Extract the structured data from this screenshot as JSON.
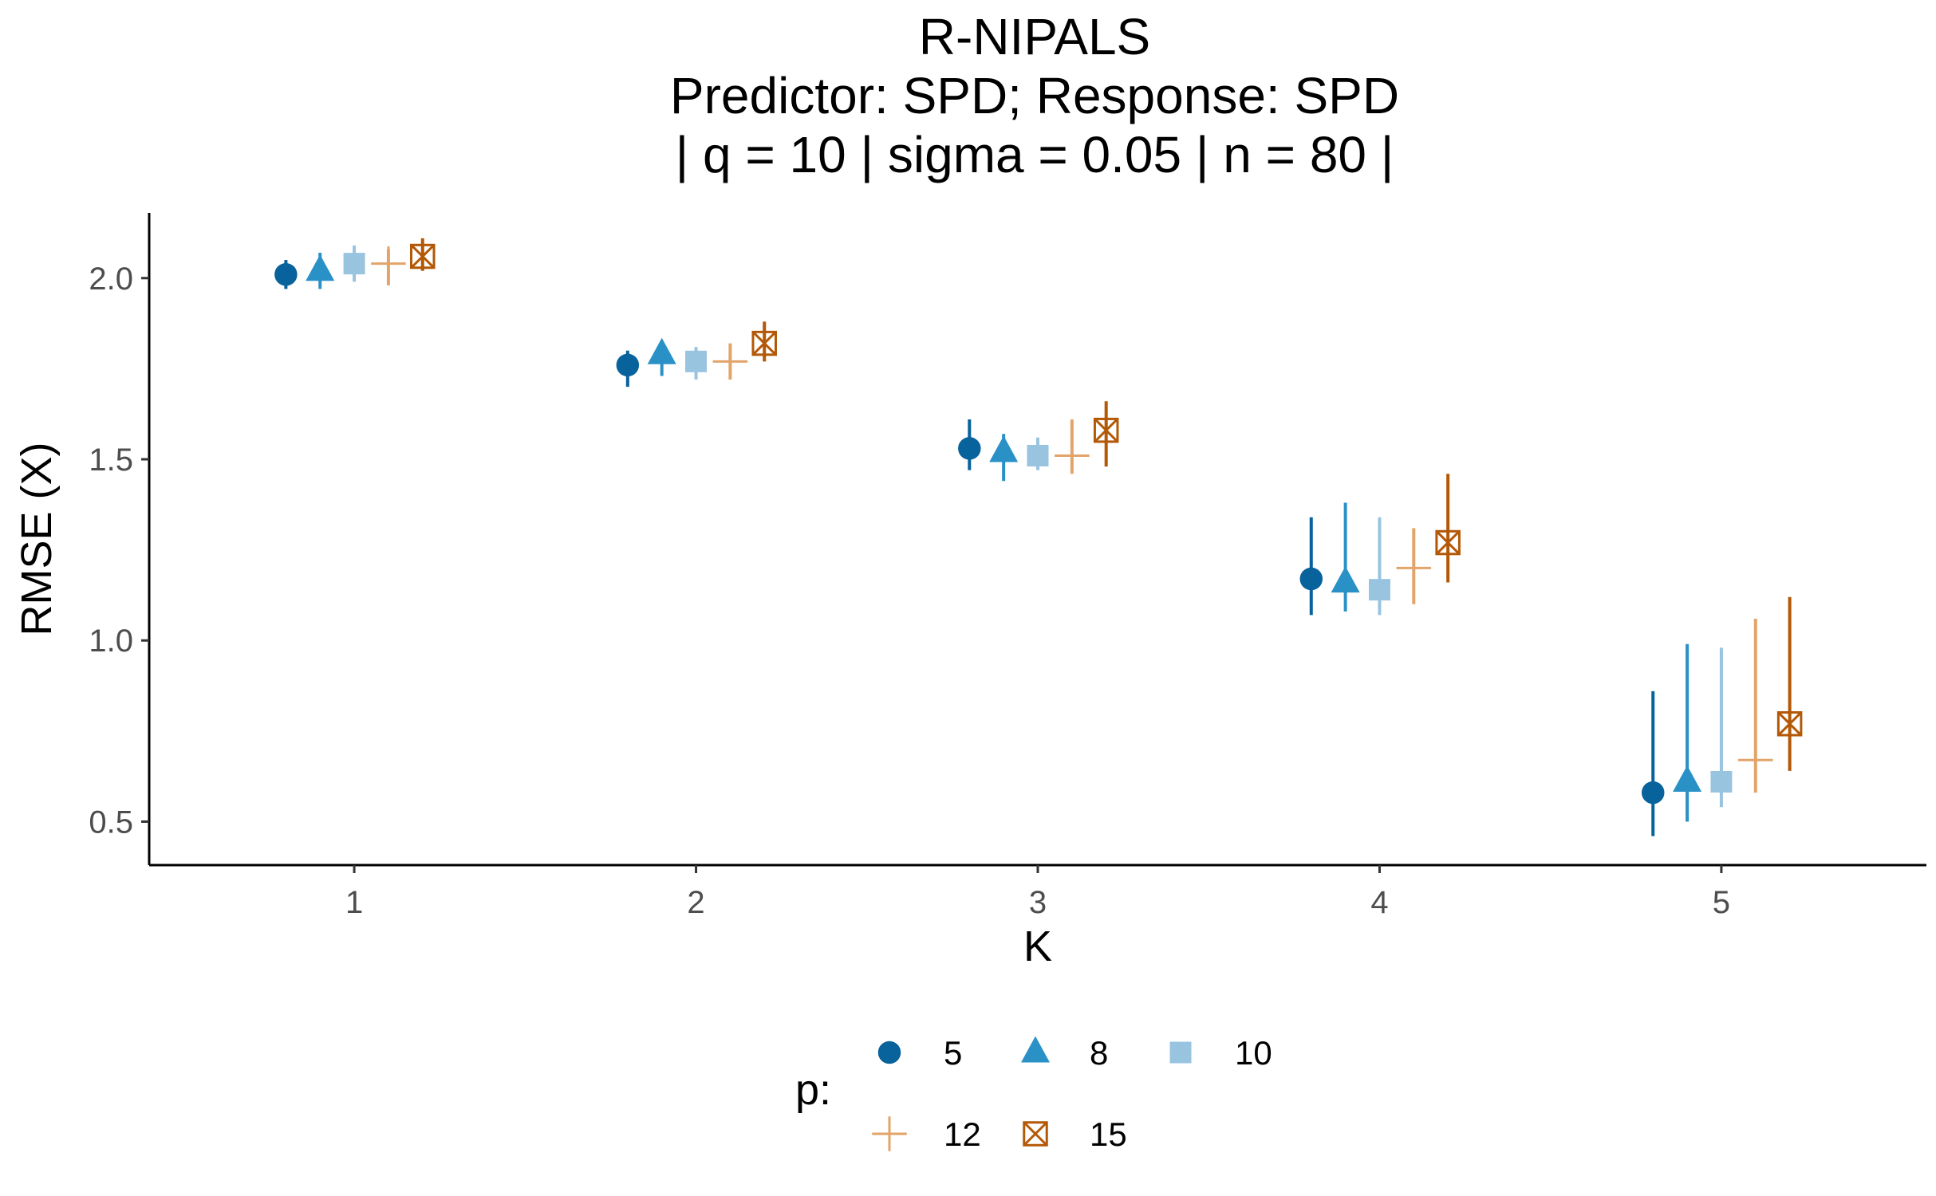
{
  "chart_data": {
    "type": "scatter",
    "title_lines": [
      "R-NIPALS",
      "Predictor: SPD; Response: SPD",
      "| q = 10 | sigma = 0.05 | n = 80 |"
    ],
    "xlabel": "K",
    "ylabel": "RMSE (X)",
    "x_ticks": [
      "1",
      "2",
      "3",
      "4",
      "5"
    ],
    "y_ticks": [
      0.5,
      1.0,
      1.5,
      2.0
    ],
    "y_tick_labels": [
      "0.5",
      "1.0",
      "1.5",
      "2.0"
    ],
    "xlim": [
      0.4,
      5.6
    ],
    "ylim": [
      0.38,
      2.18
    ],
    "grid": false,
    "legend_position": "bottom",
    "legend": {
      "title": "p:"
    },
    "series": [
      {
        "name": "5",
        "shape": "circle",
        "color": "#08629B",
        "offset": -0.2,
        "points": [
          {
            "x": 1,
            "y": 2.01,
            "lo": 1.97,
            "hi": 2.05
          },
          {
            "x": 2,
            "y": 1.76,
            "lo": 1.7,
            "hi": 1.8
          },
          {
            "x": 3,
            "y": 1.53,
            "lo": 1.47,
            "hi": 1.61
          },
          {
            "x": 4,
            "y": 1.17,
            "lo": 1.07,
            "hi": 1.34
          },
          {
            "x": 5,
            "y": 0.58,
            "lo": 0.46,
            "hi": 0.86
          }
        ]
      },
      {
        "name": "8",
        "shape": "triangle",
        "color": "#2A91C7",
        "offset": -0.1,
        "points": [
          {
            "x": 1,
            "y": 2.02,
            "lo": 1.97,
            "hi": 2.07
          },
          {
            "x": 2,
            "y": 1.79,
            "lo": 1.73,
            "hi": 1.81
          },
          {
            "x": 3,
            "y": 1.52,
            "lo": 1.44,
            "hi": 1.57
          },
          {
            "x": 4,
            "y": 1.16,
            "lo": 1.08,
            "hi": 1.38
          },
          {
            "x": 5,
            "y": 0.61,
            "lo": 0.5,
            "hi": 0.99
          }
        ]
      },
      {
        "name": "10",
        "shape": "square",
        "color": "#99C4E0",
        "offset": 0.0,
        "points": [
          {
            "x": 1,
            "y": 2.04,
            "lo": 1.99,
            "hi": 2.09
          },
          {
            "x": 2,
            "y": 1.77,
            "lo": 1.72,
            "hi": 1.81
          },
          {
            "x": 3,
            "y": 1.51,
            "lo": 1.47,
            "hi": 1.56
          },
          {
            "x": 4,
            "y": 1.14,
            "lo": 1.07,
            "hi": 1.34
          },
          {
            "x": 5,
            "y": 0.61,
            "lo": 0.54,
            "hi": 0.98
          }
        ]
      },
      {
        "name": "12",
        "shape": "plus",
        "color": "#E2A469",
        "offset": 0.1,
        "points": [
          {
            "x": 1,
            "y": 2.04,
            "lo": 1.98,
            "hi": 2.08
          },
          {
            "x": 2,
            "y": 1.77,
            "lo": 1.72,
            "hi": 1.82
          },
          {
            "x": 3,
            "y": 1.51,
            "lo": 1.46,
            "hi": 1.61
          },
          {
            "x": 4,
            "y": 1.2,
            "lo": 1.1,
            "hi": 1.31
          },
          {
            "x": 5,
            "y": 0.67,
            "lo": 0.58,
            "hi": 1.06
          }
        ]
      },
      {
        "name": "15",
        "shape": "square-cross",
        "color": "#B35806",
        "offset": 0.2,
        "points": [
          {
            "x": 1,
            "y": 2.06,
            "lo": 2.02,
            "hi": 2.11
          },
          {
            "x": 2,
            "y": 1.82,
            "lo": 1.77,
            "hi": 1.88
          },
          {
            "x": 3,
            "y": 1.58,
            "lo": 1.48,
            "hi": 1.66
          },
          {
            "x": 4,
            "y": 1.27,
            "lo": 1.16,
            "hi": 1.46
          },
          {
            "x": 5,
            "y": 0.77,
            "lo": 0.64,
            "hi": 1.12
          }
        ]
      }
    ]
  }
}
